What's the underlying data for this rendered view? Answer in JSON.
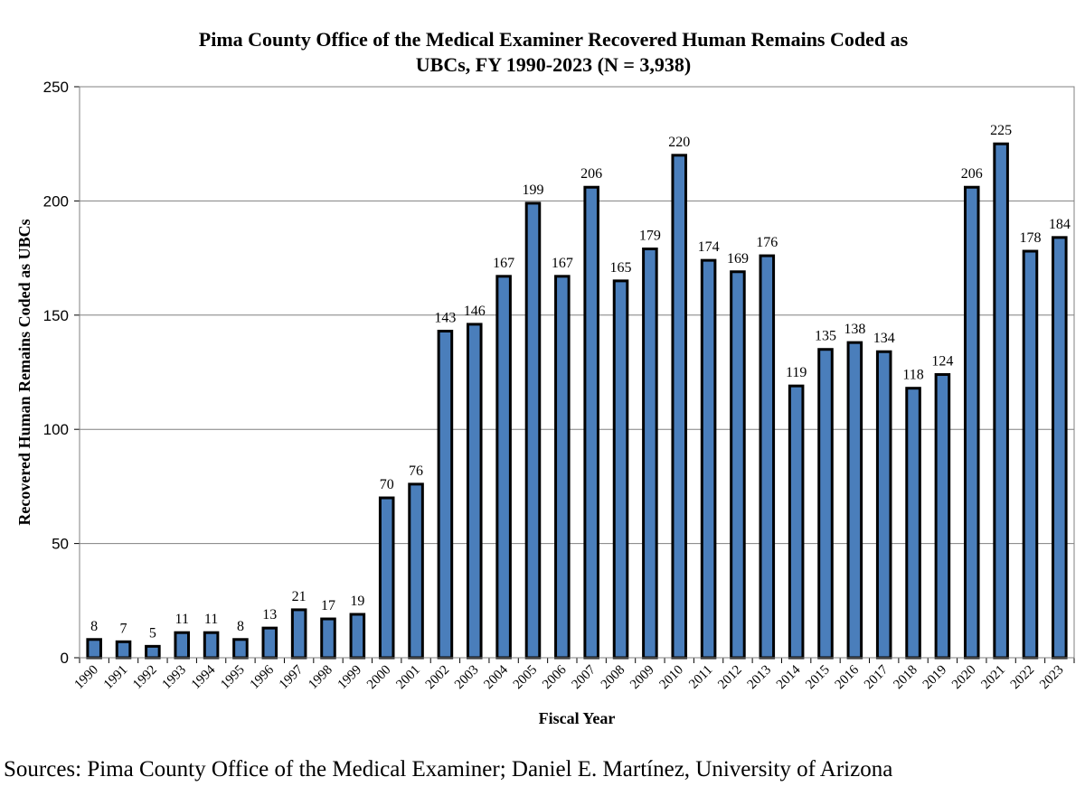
{
  "chart_data": {
    "type": "bar",
    "title_lines": [
      "Pima County Office of the Medical Examiner Recovered Human Remains Coded as",
      "UBCs, FY 1990-2023 (N = 3,938)"
    ],
    "xlabel": "Fiscal Year",
    "ylabel": "Recovered Human Remains Coded as UBCs",
    "ylim": [
      0,
      250
    ],
    "yticks": [
      0,
      50,
      100,
      150,
      200,
      250
    ],
    "grid": true,
    "legend": "none",
    "bar_color": "#4a7ebb",
    "bar_outline": "#000000",
    "categories": [
      "1990",
      "1991",
      "1992",
      "1993",
      "1994",
      "1995",
      "1996",
      "1997",
      "1998",
      "1999",
      "2000",
      "2001",
      "2002",
      "2003",
      "2004",
      "2005",
      "2006",
      "2007",
      "2008",
      "2009",
      "2010",
      "2011",
      "2012",
      "2013",
      "2014",
      "2015",
      "2016",
      "2017",
      "2018",
      "2019",
      "2020",
      "2021",
      "2022",
      "2023"
    ],
    "values": [
      8,
      7,
      5,
      11,
      11,
      8,
      13,
      21,
      17,
      19,
      70,
      76,
      143,
      146,
      167,
      199,
      167,
      206,
      165,
      179,
      220,
      174,
      169,
      176,
      119,
      135,
      138,
      134,
      118,
      124,
      206,
      225,
      178,
      184
    ]
  },
  "source_note": "Sources: Pima County Office of the Medical Examiner; Daniel E. Martínez, University of Arizona"
}
